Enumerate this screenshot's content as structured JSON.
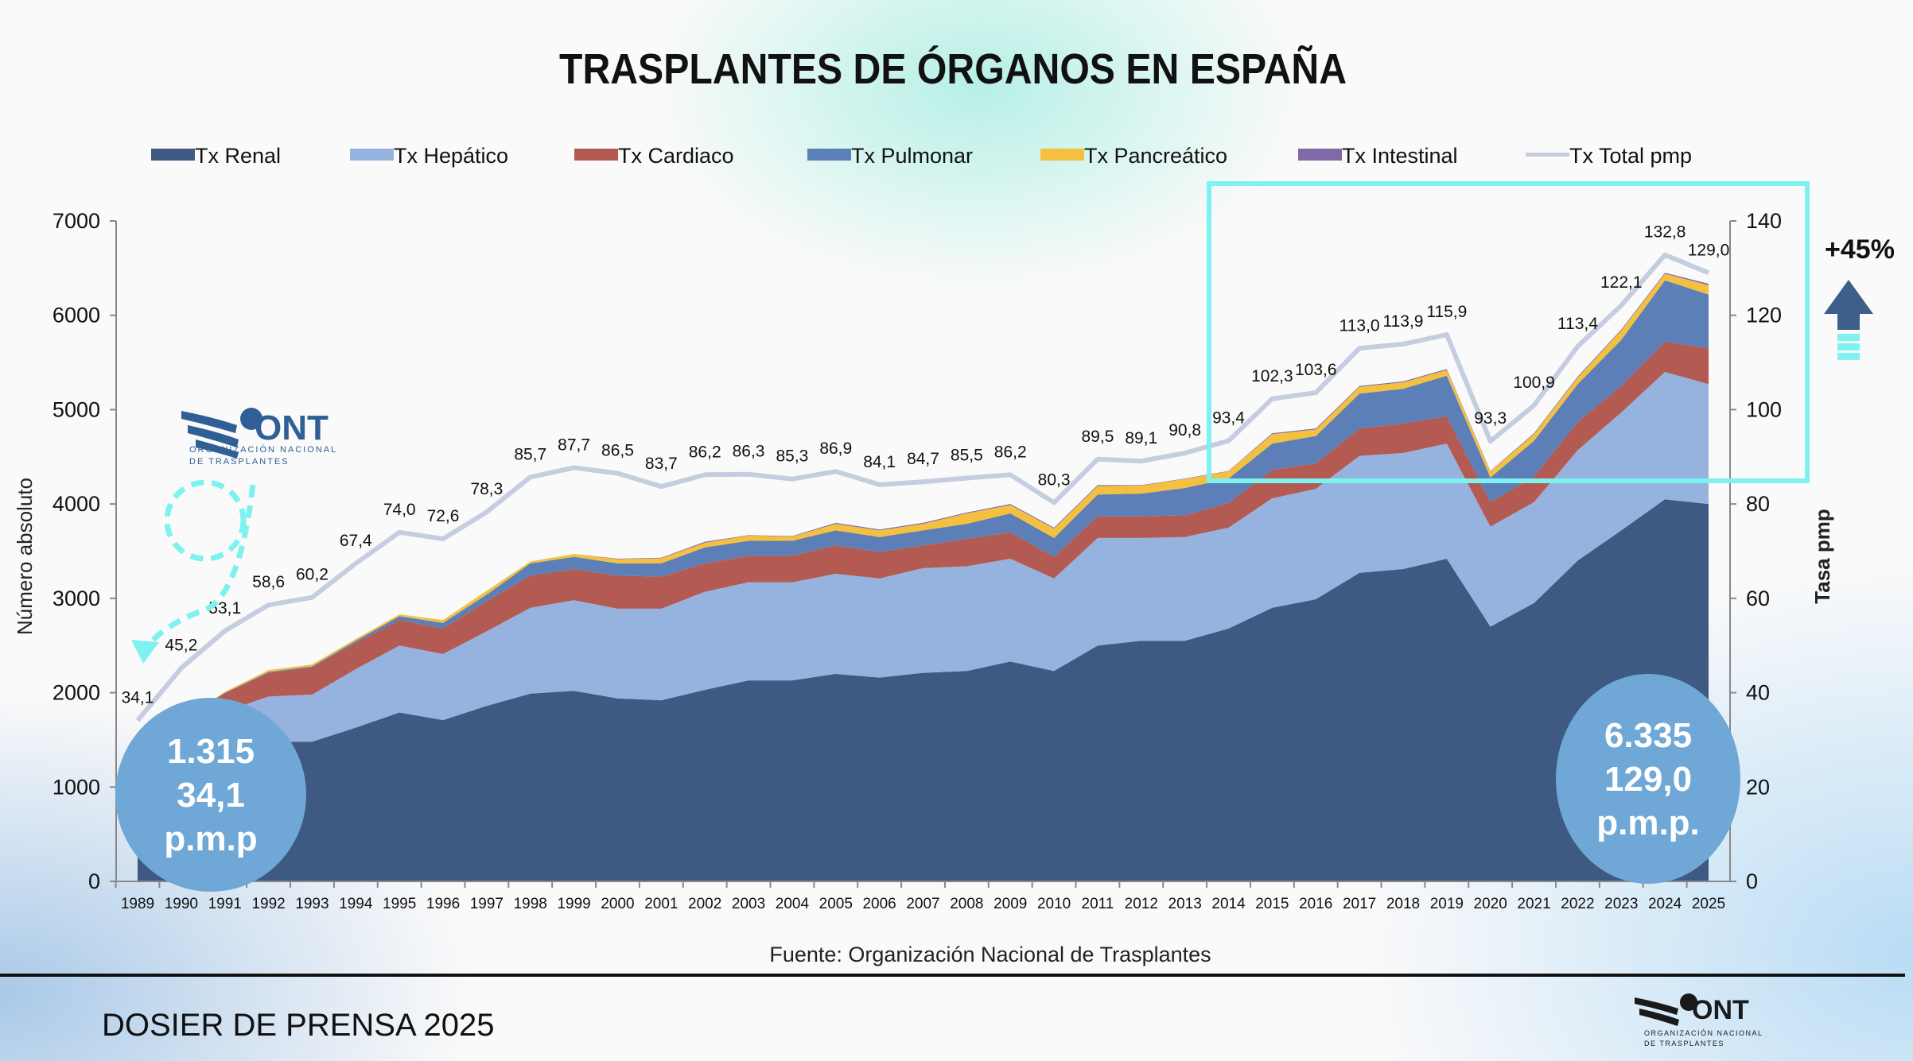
{
  "chart_data": {
    "type": "area",
    "title": "TRASPLANTES DE ÓRGANOS EN ESPAÑA",
    "ylabel": "Número absoluto",
    "y2label": "Tasa pmp",
    "ylim": [
      0,
      7000
    ],
    "y2lim": [
      0,
      140
    ],
    "yticks": [
      0,
      1000,
      2000,
      3000,
      4000,
      5000,
      6000,
      7000
    ],
    "y2ticks": [
      0,
      20,
      40,
      60,
      80,
      100,
      120,
      140
    ],
    "legend_position": "top",
    "grid": false,
    "categories": [
      "1989",
      "1990",
      "1991",
      "1992",
      "1993",
      "1994",
      "1995",
      "1996",
      "1997",
      "1998",
      "1999",
      "2000",
      "2001",
      "2002",
      "2003",
      "2004",
      "2005",
      "2006",
      "2007",
      "2008",
      "2009",
      "2010",
      "2011",
      "2012",
      "2013",
      "2014",
      "2015",
      "2016",
      "2017",
      "2018",
      "2019",
      "2020",
      "2021",
      "2022",
      "2023",
      "2024",
      "2025"
    ],
    "series": [
      {
        "name": "Tx Renal",
        "color": "#3e5a82",
        "values": [
          1005,
          1230,
          1400,
          1480,
          1480,
          1630,
          1790,
          1710,
          1860,
          1990,
          2020,
          1940,
          1920,
          2030,
          2130,
          2130,
          2200,
          2160,
          2210,
          2230,
          2330,
          2230,
          2500,
          2550,
          2550,
          2680,
          2900,
          2990,
          3270,
          3310,
          3420,
          2700,
          2950,
          3400,
          3720,
          4050,
          4000
        ]
      },
      {
        "name": "Tx Hepático",
        "color": "#95b3de",
        "values": [
          150,
          270,
          400,
          480,
          500,
          620,
          710,
          700,
          790,
          910,
          960,
          950,
          970,
          1040,
          1040,
          1040,
          1060,
          1050,
          1110,
          1110,
          1090,
          980,
          1140,
          1090,
          1100,
          1070,
          1160,
          1170,
          1240,
          1230,
          1220,
          1060,
          1070,
          1170,
          1250,
          1350,
          1270
        ]
      },
      {
        "name": "Tx Cardiaco",
        "color": "#b35a52",
        "values": [
          140,
          197,
          195,
          250,
          290,
          280,
          270,
          270,
          320,
          340,
          330,
          350,
          340,
          300,
          280,
          280,
          300,
          280,
          240,
          290,
          280,
          230,
          230,
          230,
          230,
          260,
          300,
          270,
          290,
          310,
          290,
          260,
          270,
          300,
          280,
          320,
          380
        ]
      },
      {
        "name": "Tx Pulmonar",
        "color": "#5b7fb6",
        "values": [
          10,
          3,
          5,
          10,
          10,
          20,
          40,
          60,
          70,
          130,
          130,
          130,
          140,
          170,
          160,
          160,
          160,
          160,
          160,
          160,
          200,
          200,
          230,
          240,
          290,
          260,
          280,
          290,
          370,
          370,
          430,
          260,
          380,
          400,
          490,
          650,
          570
        ]
      },
      {
        "name": "Tx Pancreático",
        "color": "#f4c040",
        "values": [
          10,
          5,
          10,
          20,
          20,
          20,
          20,
          30,
          40,
          20,
          30,
          45,
          55,
          50,
          55,
          45,
          70,
          70,
          70,
          110,
          90,
          100,
          90,
          85,
          95,
          75,
          100,
          70,
          70,
          70,
          60,
          65,
          70,
          70,
          100,
          70,
          100
        ]
      },
      {
        "name": "Tx Intestinal",
        "color": "#8169a8",
        "values": [
          0,
          0,
          0,
          0,
          0,
          0,
          0,
          0,
          0,
          0,
          0,
          5,
          5,
          10,
          5,
          5,
          10,
          10,
          10,
          10,
          10,
          10,
          10,
          5,
          5,
          5,
          10,
          10,
          10,
          10,
          10,
          5,
          10,
          10,
          10,
          10,
          15
        ]
      }
    ],
    "line_series": {
      "name": "Tx Total pmp",
      "color": "#c5cde0",
      "axis": "right",
      "values": [
        34.1,
        45.2,
        53.1,
        58.6,
        60.2,
        67.4,
        74.0,
        72.6,
        78.3,
        85.7,
        87.7,
        86.5,
        83.7,
        86.2,
        86.3,
        85.3,
        86.9,
        84.1,
        84.7,
        85.5,
        86.2,
        80.3,
        89.5,
        89.1,
        90.8,
        93.4,
        102.3,
        103.6,
        113.0,
        113.9,
        115.9,
        93.3,
        100.9,
        113.4,
        122.1,
        132.8,
        129.0
      ],
      "labels": [
        "34,1",
        "45,2",
        "53,1",
        "58,6",
        "60,2",
        "67,4",
        "74,0",
        "72,6",
        "78,3",
        "85,7",
        "87,7",
        "86,5",
        "83,7",
        "86,2",
        "86,3",
        "85,3",
        "86,9",
        "84,1",
        "84,7",
        "85,5",
        "86,2",
        "80,3",
        "89,5",
        "89,1",
        "90,8",
        "93,4",
        "102,3",
        "103,6",
        "113,0",
        "113,9",
        "115,9",
        "93,3",
        "100,9",
        "113,4",
        "122,1",
        "132,8",
        "129,0"
      ]
    },
    "annotations": {
      "start_bubble": [
        "1.315",
        "34,1",
        "p.m.p"
      ],
      "end_bubble": [
        "6.335",
        "129,0",
        "p.m.p."
      ],
      "growth": "+45%",
      "bubble_color": "#6fa8d6",
      "highlight_color": "#7ef2f0"
    }
  },
  "source": "Fuente: Organización Nacional de Trasplantes",
  "footer": {
    "title": "DOSIER DE PRENSA 2025"
  },
  "logo": {
    "text": "ONT",
    "subtitle_1": "ORGANIZACIÓN NACIONAL",
    "subtitle_2": "DE TRASPLANTES",
    "color": "#2f5f94"
  }
}
